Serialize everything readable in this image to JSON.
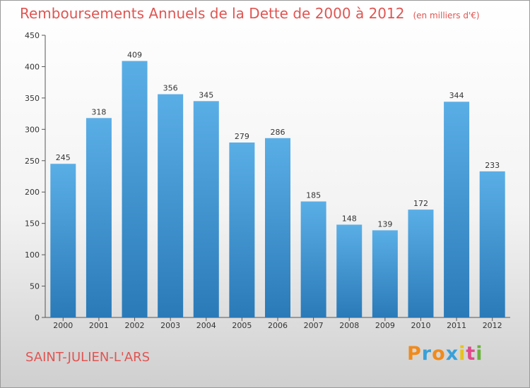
{
  "header": {
    "title": "Remboursements Annuels de la Dette de 2000 à 2012",
    "subtitle": "(en milliers d'€)"
  },
  "footer": {
    "commune": "SAINT-JULIEN-L'ARS",
    "logo": "Proxiti",
    "logo_colors": [
      "#f08a1c",
      "#3aa0d8",
      "#f08a1c",
      "#3aa0d8",
      "#e8c21a",
      "#e04a8a",
      "#6ab23e"
    ]
  },
  "colors": {
    "title": "#e05552",
    "bar_top": "#5aaee6",
    "bar_bottom": "#2a7ab8"
  },
  "chart_data": {
    "type": "bar",
    "categories": [
      "2000",
      "2001",
      "2002",
      "2003",
      "2004",
      "2005",
      "2006",
      "2007",
      "2008",
      "2009",
      "2010",
      "2011",
      "2012"
    ],
    "values": [
      245,
      318,
      409,
      356,
      345,
      279,
      286,
      185,
      148,
      139,
      172,
      344,
      233
    ],
    "ylim": [
      0,
      450
    ],
    "yticks": [
      0,
      50,
      100,
      150,
      200,
      250,
      300,
      350,
      400,
      450
    ],
    "grid": false,
    "legend": "none"
  }
}
